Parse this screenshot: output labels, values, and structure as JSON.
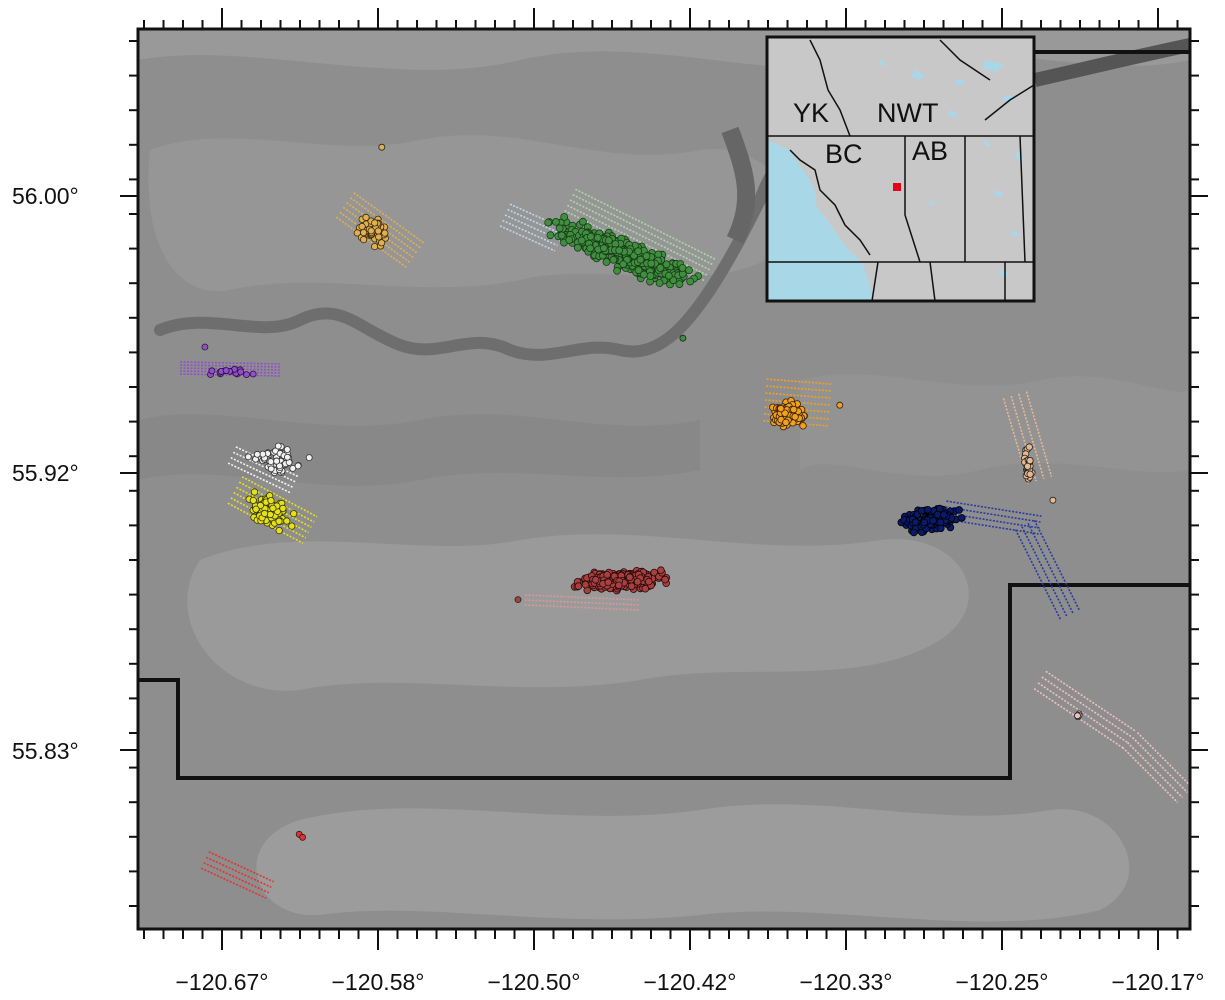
{
  "map": {
    "x_ticks": [
      "−120.67°",
      "−120.58°",
      "−120.50°",
      "−120.42°",
      "−120.33°",
      "−120.25°",
      "−120.17°"
    ],
    "y_ticks": [
      "56.00°",
      "55.92°",
      "55.83°"
    ],
    "inset": {
      "labels": [
        "YK",
        "NWT",
        "BC",
        "AB"
      ],
      "location_marker_color": "#e8001a"
    },
    "colors": {
      "terrain": "#8f8f8f",
      "water": "#a8d8e8",
      "border": "#111111"
    },
    "seismicity_clusters": [
      {
        "name": "tan-cluster",
        "color": "#e0b050"
      },
      {
        "name": "green-cluster",
        "color": "#3f8f3f"
      },
      {
        "name": "purple-cluster",
        "color": "#9050c8"
      },
      {
        "name": "white-cluster",
        "color": "#f2f2f2"
      },
      {
        "name": "yellow-cluster",
        "color": "#e4e020"
      },
      {
        "name": "orange-cluster",
        "color": "#f0a020"
      },
      {
        "name": "maroon-cluster",
        "color": "#a84040"
      },
      {
        "name": "navy-cluster",
        "color": "#0a1a6a"
      },
      {
        "name": "peach-cluster",
        "color": "#e8b890"
      },
      {
        "name": "pink-cluster",
        "color": "#f0c0c0"
      },
      {
        "name": "red-cluster",
        "color": "#e83030"
      }
    ]
  }
}
